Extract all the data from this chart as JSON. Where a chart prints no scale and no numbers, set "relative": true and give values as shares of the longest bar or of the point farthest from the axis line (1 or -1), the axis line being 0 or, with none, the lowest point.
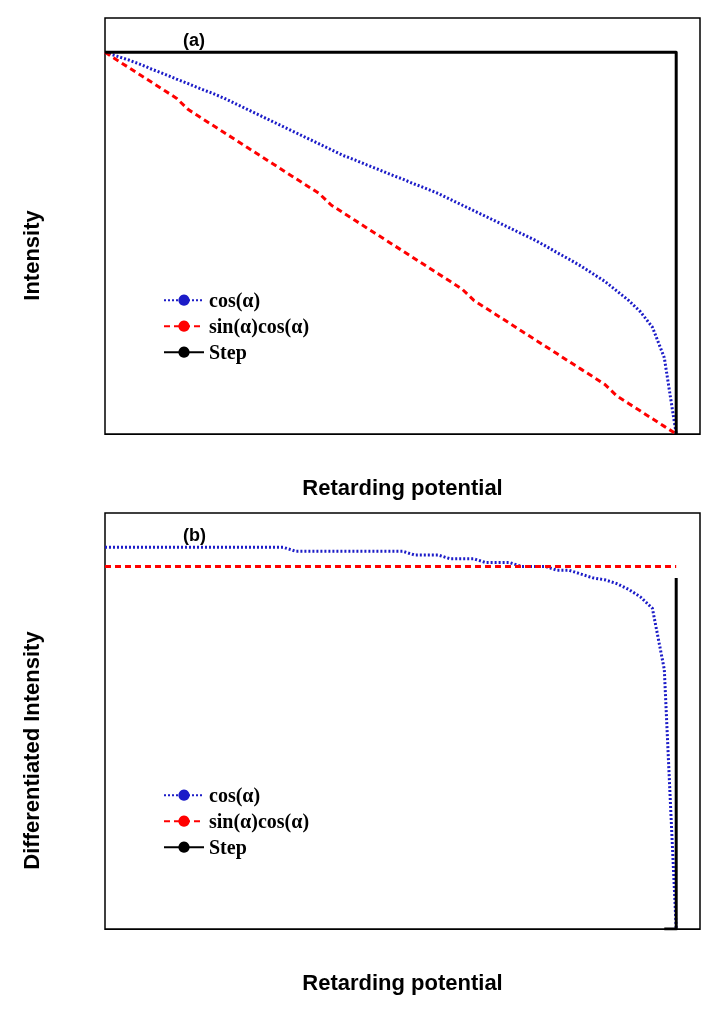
{
  "chart_data": [
    {
      "type": "line",
      "title": "(a)",
      "xlabel": "Retarding potential",
      "ylabel": "Intensity",
      "relative": true,
      "legend": "left",
      "marker": "none",
      "categories": [
        null,
        null,
        null,
        null,
        null,
        null,
        null,
        null,
        null,
        null,
        null,
        null,
        null,
        null,
        null,
        null,
        null,
        null,
        null,
        null,
        null,
        null,
        null,
        null,
        null,
        null,
        null,
        null,
        null,
        null,
        null,
        null,
        null,
        null,
        null,
        null,
        null,
        null,
        null,
        null,
        null,
        null,
        null,
        null,
        null,
        null,
        null,
        null,
        null,
        null,
        null
      ],
      "series": [
        {
          "name": "cos(α)",
          "color": "#1c1cc8",
          "line_style": "dotted",
          "values": [
            1,
            0.99,
            0.98,
            0.968,
            0.955,
            0.943,
            0.93,
            0.918,
            0.905,
            0.893,
            0.88,
            0.865,
            0.85,
            0.835,
            0.82,
            0.805,
            0.79,
            0.775,
            0.76,
            0.745,
            0.73,
            0.718,
            0.705,
            0.693,
            0.68,
            0.668,
            0.655,
            0.643,
            0.63,
            0.615,
            0.6,
            0.585,
            0.57,
            0.555,
            0.54,
            0.525,
            0.51,
            0.493,
            0.475,
            0.458,
            0.44,
            0.42,
            0.4,
            0.375,
            0.35,
            0.32,
            0.28,
            0.2,
            0,
            null,
            null
          ]
        },
        {
          "name": "sin(α)cos(α)",
          "color": "#ff0000",
          "line_style": "dashed",
          "values": [
            1,
            0.98,
            0.96,
            0.94,
            0.92,
            0.9,
            0.88,
            0.85,
            0.83,
            0.81,
            0.79,
            0.77,
            0.75,
            0.73,
            0.71,
            0.69,
            0.67,
            0.65,
            0.63,
            0.6,
            0.58,
            0.56,
            0.54,
            0.52,
            0.5,
            0.48,
            0.46,
            0.44,
            0.42,
            0.4,
            0.38,
            0.35,
            0.33,
            0.31,
            0.29,
            0.27,
            0.25,
            0.23,
            0.21,
            0.19,
            0.17,
            0.15,
            0.13,
            0.1,
            0.08,
            0.06,
            0.04,
            0.02,
            0,
            null,
            null
          ]
        },
        {
          "name": "Step",
          "type": "step",
          "color": "#000000",
          "line_style": "solid",
          "values": [
            1,
            1,
            1,
            1,
            1,
            1,
            1,
            1,
            1,
            1,
            1,
            1,
            1,
            1,
            1,
            1,
            1,
            1,
            1,
            1,
            1,
            1,
            1,
            1,
            1,
            1,
            1,
            1,
            1,
            1,
            1,
            1,
            1,
            1,
            1,
            1,
            1,
            1,
            1,
            1,
            1,
            1,
            1,
            1,
            1,
            1,
            1,
            1,
            0,
            null,
            null
          ]
        }
      ]
    },
    {
      "type": "line",
      "title": "(b)",
      "xlabel": "Retarding potential",
      "ylabel": "Differentiated Intensity",
      "relative": true,
      "legend": "left",
      "marker": "none",
      "categories": [
        null,
        null,
        null,
        null,
        null,
        null,
        null,
        null,
        null,
        null,
        null,
        null,
        null,
        null,
        null,
        null,
        null,
        null,
        null,
        null,
        null,
        null,
        null,
        null,
        null,
        null,
        null,
        null,
        null,
        null,
        null,
        null,
        null,
        null,
        null,
        null,
        null,
        null,
        null,
        null,
        null,
        null,
        null,
        null,
        null,
        null,
        null,
        null,
        null,
        null,
        null
      ],
      "series": [
        {
          "name": "cos(α)",
          "color": "#1c1cc8",
          "line_style": "dotted",
          "values": [
            1,
            1,
            1,
            1,
            1,
            1,
            1,
            1,
            1,
            1,
            1,
            1,
            1,
            1,
            1,
            1,
            0.99,
            0.99,
            0.99,
            0.99,
            0.99,
            0.99,
            0.99,
            0.99,
            0.99,
            0.99,
            0.98,
            0.98,
            0.98,
            0.97,
            0.97,
            0.97,
            0.96,
            0.96,
            0.96,
            0.95,
            0.95,
            0.95,
            0.94,
            0.94,
            0.93,
            0.92,
            0.915,
            0.905,
            0.89,
            0.87,
            0.84,
            0.68,
            0,
            null,
            null
          ]
        },
        {
          "name": "sin(α)cos(α)",
          "color": "#ff0000",
          "line_style": "dashed",
          "values": [
            0.95,
            0.95,
            0.95,
            0.95,
            0.95,
            0.95,
            0.95,
            0.95,
            0.95,
            0.95,
            0.95,
            0.95,
            0.95,
            0.95,
            0.95,
            0.95,
            0.95,
            0.95,
            0.95,
            0.95,
            0.95,
            0.95,
            0.95,
            0.95,
            0.95,
            0.95,
            0.95,
            0.95,
            0.95,
            0.95,
            0.95,
            0.95,
            0.95,
            0.95,
            0.95,
            0.95,
            0.95,
            0.95,
            0.95,
            0.95,
            0.95,
            0.95,
            0.95,
            0.95,
            0.95,
            0.95,
            0.95,
            0.95,
            0.95,
            null,
            null
          ]
        },
        {
          "name": "Step",
          "type": "step",
          "color": "#000000",
          "line_style": "solid",
          "values": [
            null,
            null,
            null,
            null,
            null,
            null,
            null,
            null,
            null,
            null,
            null,
            null,
            null,
            null,
            null,
            null,
            null,
            null,
            null,
            null,
            null,
            null,
            null,
            null,
            null,
            null,
            null,
            null,
            null,
            null,
            null,
            null,
            null,
            null,
            null,
            null,
            null,
            null,
            null,
            null,
            null,
            null,
            null,
            null,
            null,
            null,
            null,
            0,
            0.92,
            null,
            null
          ]
        }
      ]
    }
  ]
}
